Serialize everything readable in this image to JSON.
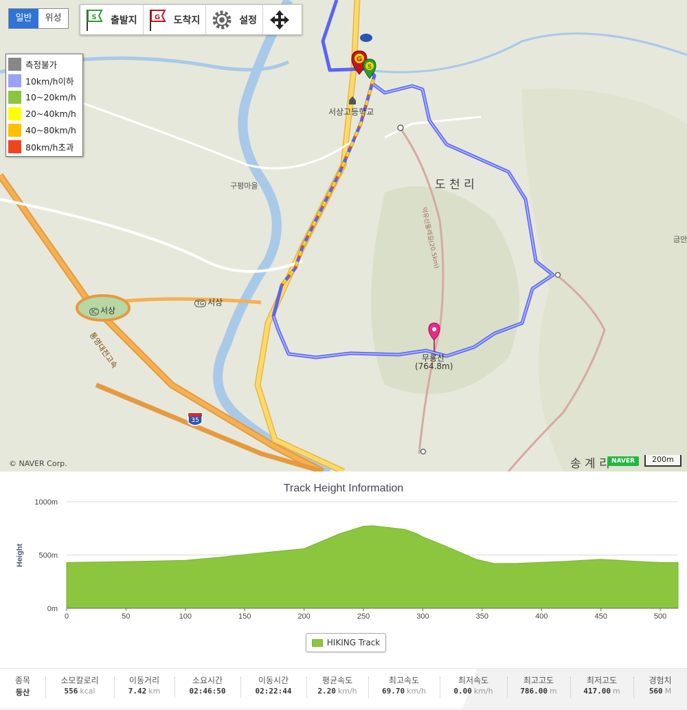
{
  "map": {
    "maptype": {
      "normal": "일반",
      "satellite": "위성",
      "selected": "normal"
    },
    "toolbar": {
      "start_label": "출발지",
      "end_label": "도착지",
      "settings_label": "설정"
    },
    "speed_legend": [
      {
        "label": "측정불가",
        "color": "#888888"
      },
      {
        "label": "10km/h이하",
        "color": "#99a3f5"
      },
      {
        "label": "10~20km/h",
        "color": "#8cc63f"
      },
      {
        "label": "20~40km/h",
        "color": "#ffff00"
      },
      {
        "label": "40~80km/h",
        "color": "#ffc000"
      },
      {
        "label": "80km/h초과",
        "color": "#f0441f"
      }
    ],
    "places": {
      "school": "서상고등학교",
      "village": "구평마을",
      "docheon": "도 천 리",
      "mountain": "무룡산",
      "elevation": "(764.8m)",
      "ic": "서상",
      "ic_badge": "IC",
      "tg": "서상",
      "tg_badge": "TG",
      "highway": "통영대전고속",
      "route_badge": "35",
      "songgye": "송 계 리",
      "geuman": "금안",
      "trail": "덕유산둘레길(20.5km)"
    },
    "copyright": "© NAVER Corp.",
    "naver_logo": "NAVER",
    "scale_label": "200m",
    "markers": {
      "start": "S",
      "goal": "G"
    }
  },
  "chart": {
    "title": "Track Height Information",
    "legend_label": "HIKING Track",
    "fill_color": "#8cc63f"
  },
  "chart_data": {
    "type": "area",
    "title": "Track Height Information",
    "xlabel": "",
    "ylabel": "Height",
    "xlim": [
      0,
      515
    ],
    "ylim": [
      0,
      1000
    ],
    "x_ticks": [
      0,
      50,
      100,
      150,
      200,
      250,
      300,
      350,
      400,
      450,
      500
    ],
    "y_ticks": [
      {
        "value": 0,
        "label": "0m"
      },
      {
        "value": 500,
        "label": "500m"
      },
      {
        "value": 1000,
        "label": "1000m"
      }
    ],
    "grid": true,
    "series": [
      {
        "name": "HIKING Track",
        "x": [
          0,
          30,
          60,
          100,
          130,
          160,
          200,
          230,
          250,
          258,
          270,
          285,
          295,
          300,
          320,
          345,
          360,
          380,
          420,
          450,
          480,
          500,
          515
        ],
        "y": [
          430,
          435,
          440,
          450,
          480,
          515,
          560,
          700,
          770,
          775,
          760,
          740,
          700,
          670,
          580,
          460,
          420,
          422,
          440,
          460,
          440,
          430,
          430
        ]
      }
    ]
  },
  "stats": [
    {
      "label": "종목",
      "value": "등산",
      "unit": ""
    },
    {
      "label": "소모칼로리",
      "value": "556",
      "unit": "kcal"
    },
    {
      "label": "이동거리",
      "value": "7.42",
      "unit": "km"
    },
    {
      "label": "소요시간",
      "value": "02:46:50",
      "unit": ""
    },
    {
      "label": "이동시간",
      "value": "02:22:44",
      "unit": ""
    },
    {
      "label": "평균속도",
      "value": "2.20",
      "unit": "km/h"
    },
    {
      "label": "최고속도",
      "value": "69.70",
      "unit": "km/h"
    },
    {
      "label": "최저속도",
      "value": "0.00",
      "unit": "km/h"
    },
    {
      "label": "최고고도",
      "value": "786.00",
      "unit": "m"
    },
    {
      "label": "최저고도",
      "value": "417.00",
      "unit": "m"
    },
    {
      "label": "경험치",
      "value": "560",
      "unit": "M"
    }
  ]
}
